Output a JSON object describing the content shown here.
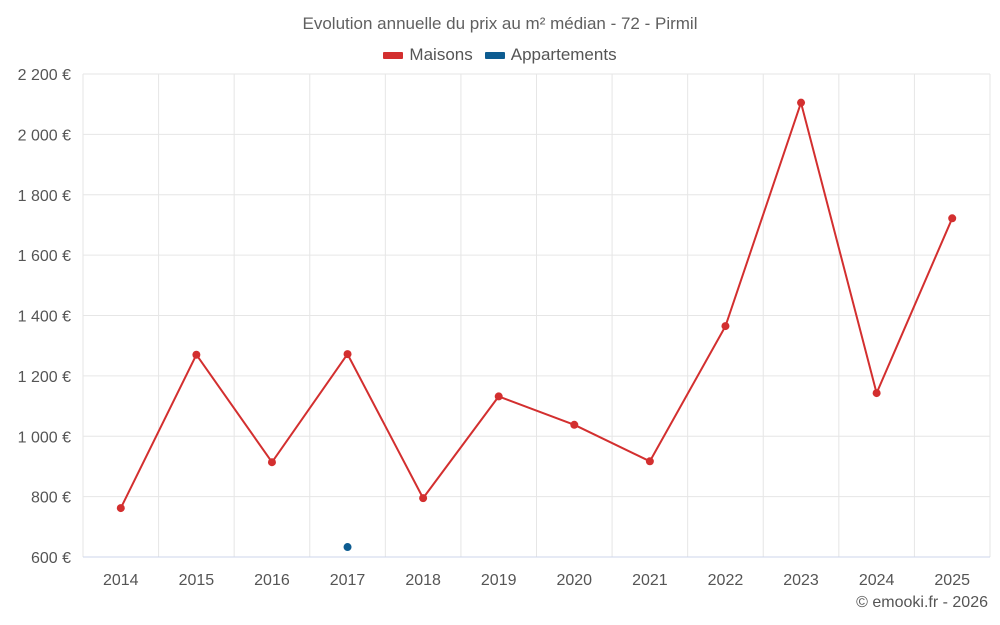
{
  "chart_data": {
    "type": "line",
    "title": "Evolution annuelle du prix au m² médian - 72 - Pirmil",
    "xlabel": "",
    "ylabel": "",
    "categories": [
      "2014",
      "2015",
      "2016",
      "2017",
      "2018",
      "2019",
      "2020",
      "2021",
      "2022",
      "2023",
      "2024",
      "2025"
    ],
    "ylim": [
      600,
      2200
    ],
    "yticks": [
      600,
      800,
      1000,
      1200,
      1400,
      1600,
      1800,
      2000,
      2200
    ],
    "ytick_labels": [
      "600 €",
      "800 €",
      "1 000 €",
      "1 200 €",
      "1 400 €",
      "1 600 €",
      "1 800 €",
      "2 000 €",
      "2 200 €"
    ],
    "grid": true,
    "legend_position": "top-center",
    "series": [
      {
        "name": "Maisons",
        "color": "#d32f2f",
        "values": [
          762,
          1270,
          914,
          1272,
          795,
          1132,
          1038,
          917,
          1365,
          2105,
          1143,
          1722
        ]
      },
      {
        "name": "Appartements",
        "color": "#0d5c91",
        "values": [
          null,
          null,
          null,
          633,
          null,
          null,
          null,
          null,
          null,
          null,
          null,
          null
        ]
      }
    ]
  },
  "credit": "© emooki.fr - 2026"
}
